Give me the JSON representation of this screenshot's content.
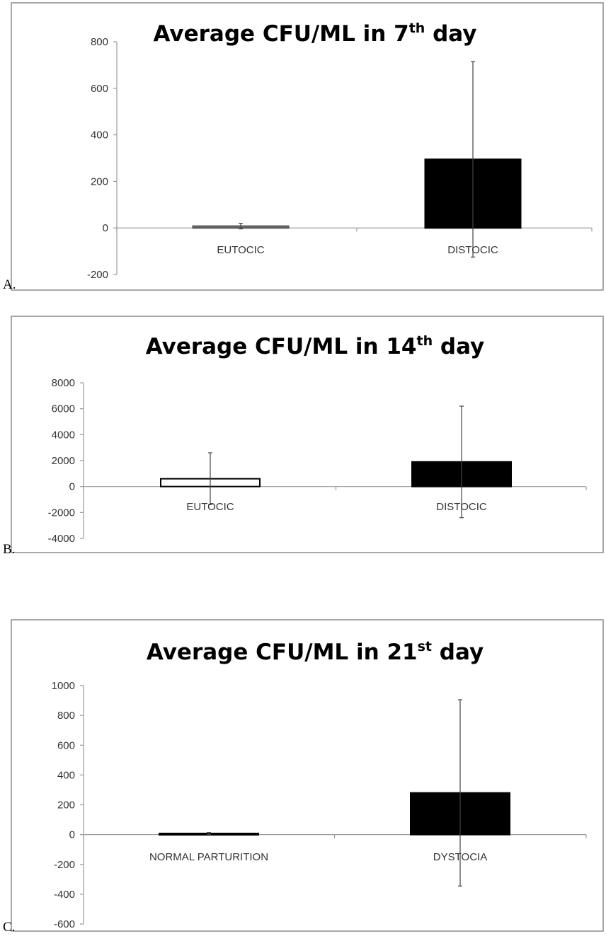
{
  "chart_data": [
    {
      "type": "bar",
      "panel_label": "A.",
      "title": "Average CFU/ML  in 7",
      "title_sup": "th",
      "title_tail": " day",
      "categories": [
        "EUTOCIC",
        "DISTOCIC"
      ],
      "values": [
        8,
        295
      ],
      "error_bars": [
        12,
        420
      ],
      "bar_colors": [
        "#8a8a8a",
        "#000000"
      ],
      "bar_stroke": [
        "#555555",
        "#000000"
      ],
      "ylim": [
        -200,
        800
      ],
      "yticks": [
        -200,
        0,
        200,
        400,
        600,
        800
      ],
      "ytick_labels": [
        "-200",
        "0",
        "200",
        "400",
        "600",
        "800"
      ],
      "xlabel": "",
      "ylabel": "",
      "grid": false
    },
    {
      "type": "bar",
      "panel_label": "B.",
      "title": "Average CFU/ML  in 14",
      "title_sup": "th",
      "title_tail": " day",
      "categories": [
        "EUTOCIC",
        "DISTOCIC"
      ],
      "values": [
        600,
        1900
      ],
      "error_bars": [
        2000,
        4300
      ],
      "bar_colors": [
        "#ffffff",
        "#000000"
      ],
      "bar_stroke": [
        "#000000",
        "#000000"
      ],
      "ylim": [
        -4000,
        8000
      ],
      "yticks": [
        -4000,
        -2000,
        0,
        2000,
        4000,
        6000,
        8000
      ],
      "ytick_labels": [
        "-4000",
        "-2000",
        "0",
        "2000",
        "4000",
        "6000",
        "8000"
      ],
      "xlabel": "",
      "ylabel": "",
      "grid": false
    },
    {
      "type": "bar",
      "panel_label": "C.",
      "title": "Average CFU/ML  in 21",
      "title_sup": "st",
      "title_tail": " day",
      "categories": [
        "NORMAL PARTURITION",
        "DYSTOCIA"
      ],
      "values": [
        8,
        280
      ],
      "error_bars": [
        6,
        625
      ],
      "bar_colors": [
        "#000000",
        "#000000"
      ],
      "bar_stroke": [
        "#000000",
        "#000000"
      ],
      "ylim": [
        -600,
        1000
      ],
      "yticks": [
        -600,
        -400,
        -200,
        0,
        200,
        400,
        600,
        800,
        1000
      ],
      "ytick_labels": [
        "-600",
        "-400",
        "-200",
        "0",
        "200",
        "400",
        "600",
        "800",
        "1000"
      ],
      "xlabel": "",
      "ylabel": "",
      "grid": false
    }
  ]
}
